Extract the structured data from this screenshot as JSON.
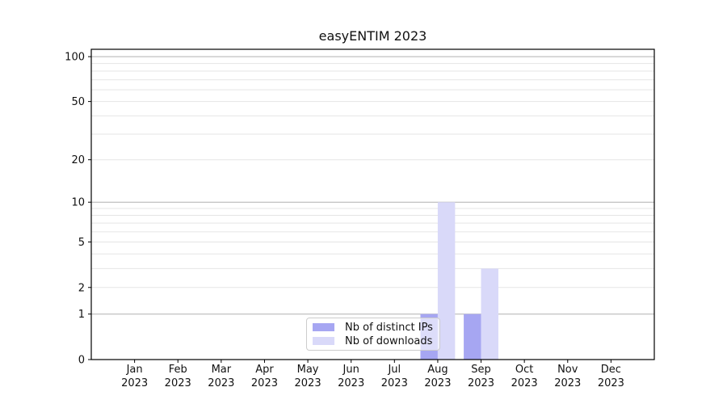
{
  "chart_data": {
    "type": "bar",
    "title": "easyENTIM 2023",
    "categories": [
      "Jan",
      "Feb",
      "Mar",
      "Apr",
      "May",
      "Jun",
      "Jul",
      "Aug",
      "Sep",
      "Oct",
      "Nov",
      "Dec"
    ],
    "category_year": "2023",
    "series": [
      {
        "name": "Nb of distinct IPs",
        "color": "#a6a6f2",
        "values": [
          0,
          0,
          0,
          0,
          0,
          0,
          0,
          1,
          1,
          0,
          0,
          0
        ]
      },
      {
        "name": "Nb of downloads",
        "color": "#d9d9f9",
        "values": [
          0,
          0,
          0,
          0,
          0,
          0,
          0,
          10,
          3,
          0,
          0,
          0
        ]
      }
    ],
    "xlabel": "",
    "ylabel": "",
    "yscale": "log1p",
    "ylim": [
      0,
      112
    ],
    "yticks": [
      0,
      1,
      2,
      5,
      10,
      20,
      50,
      100
    ],
    "y_major_gridlines": [
      1,
      10,
      100
    ],
    "y_minor_gridlines": [
      2,
      3,
      4,
      5,
      6,
      7,
      8,
      9,
      20,
      30,
      40,
      50,
      60,
      70,
      80,
      90
    ],
    "grid": "horizontal, major and minor, on",
    "legend_position": "lower center",
    "colors": {
      "major_gridline": "#b0b0b0",
      "minor_gridline": "#e5e5e5",
      "axis": "#000000",
      "text": "#111111",
      "background": "#ffffff"
    }
  }
}
